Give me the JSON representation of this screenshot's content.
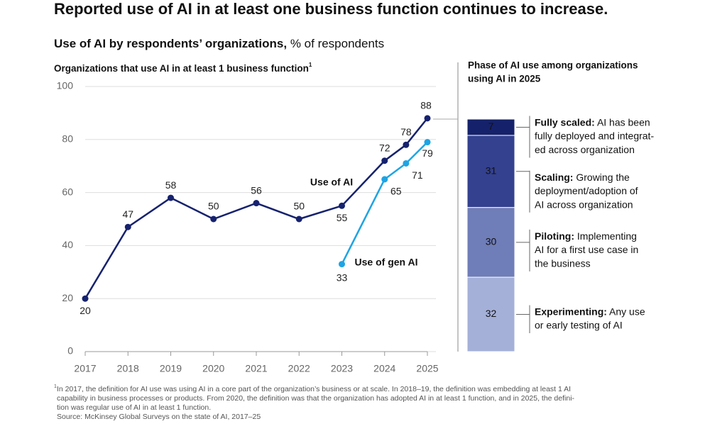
{
  "header": {
    "title": "Reported use of AI in at least one business function continues to increase.",
    "subtitle_bold": "Use of AI by respondents’ organizations,",
    "subtitle_rest": "% of respondents"
  },
  "chart_data": [
    {
      "type": "line",
      "title": "Organizations that use AI in at least 1 business function",
      "title_note": "1",
      "x": [
        2017,
        2018,
        2019,
        2020,
        2021,
        2022,
        2023,
        2024,
        2024.5,
        2025
      ],
      "xlim": [
        2017,
        2025
      ],
      "xticks": [
        2017,
        2018,
        2019,
        2020,
        2021,
        2022,
        2023,
        2024,
        2025
      ],
      "ylim": [
        0,
        100
      ],
      "yticks": [
        0,
        20,
        40,
        60,
        80,
        100
      ],
      "grid": true,
      "series": [
        {
          "name": "Use of AI",
          "color": "#16226e",
          "values": [
            20,
            47,
            58,
            50,
            56,
            50,
            55,
            72,
            78,
            88
          ]
        },
        {
          "name": "Use of gen AI",
          "color": "#1ea4e4",
          "values": [
            null,
            null,
            null,
            null,
            null,
            null,
            33,
            65,
            71,
            79
          ]
        }
      ]
    },
    {
      "type": "bar",
      "stacked": true,
      "title_lines": [
        "Phase of AI use among organizations",
        "using AI in 2025"
      ],
      "categories": [
        null
      ],
      "ylim": [
        0,
        100
      ],
      "series": [
        {
          "name": "Fully scaled:",
          "color": "#15226b",
          "values": [
            7
          ],
          "description_lines": [
            "AI has been",
            "fully deployed and integrat-",
            "ed across organization"
          ]
        },
        {
          "name": "Scaling:",
          "color": "#33418f",
          "values": [
            31
          ],
          "description_lines": [
            "Growing the",
            "deployment/adoption of",
            "AI across organization"
          ]
        },
        {
          "name": "Piloting:",
          "color": "#6f7db8",
          "values": [
            30
          ],
          "description_lines": [
            "Implementing",
            "AI for a first use case in",
            "the business"
          ]
        },
        {
          "name": "Experimenting:",
          "color": "#a4b0d8",
          "values": [
            32
          ],
          "description_lines": [
            "Any use",
            "or early testing of AI"
          ]
        }
      ]
    }
  ],
  "footnote": {
    "mark": "1",
    "lines": [
      "In 2017, the definition for AI use was using AI in a core part of the organization’s business or at scale. In 2018–19, the definition was embedding at least 1 AI",
      "capability in business processes or products. From 2020, the definition was that the organization has adopted AI in at least 1 function, and in 2025, the defini-",
      "tion was regular use of AI in at least 1 function."
    ],
    "source": "Source: McKinsey Global Surveys on the state of AI, 2017–25"
  }
}
